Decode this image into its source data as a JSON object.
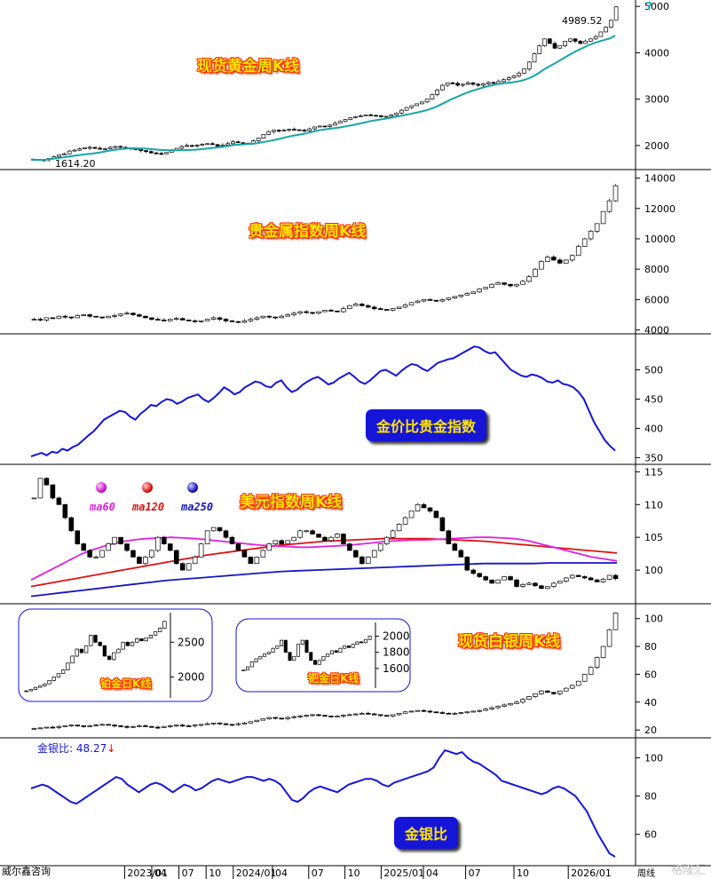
{
  "header": {
    "help_glyph": "?"
  },
  "footer": {
    "source": "威尔鑫咨询",
    "watermark": "格隆汇"
  },
  "panels": {
    "gold": {
      "title": "现货黄金周K线",
      "high_label": "4989.52",
      "low_label": "1614.20"
    },
    "pm_index": {
      "title": "贵金属指数周K线"
    },
    "ratio_pm": {
      "title": "金价比贵金指数"
    },
    "usd": {
      "title": "美元指数周K线",
      "ma60": "ma60",
      "ma120": "ma120",
      "ma250": "ma250"
    },
    "silver": {
      "title": "现货白银周K线",
      "inset_pt": "铂金日K线",
      "inset_pd": "钯金日K线"
    },
    "gs_ratio": {
      "title": "金银比",
      "value_label": "金银比: 48.27",
      "arrow": "↓"
    }
  },
  "x_axis": {
    "ticks": [
      {
        "label": "2023/01",
        "frac": 0.155
      },
      {
        "label": "04",
        "frac": 0.2
      },
      {
        "label": "07",
        "frac": 0.245
      },
      {
        "label": "10",
        "frac": 0.29
      },
      {
        "label": "2024/01",
        "frac": 0.335
      },
      {
        "label": "04",
        "frac": 0.4
      },
      {
        "label": "07",
        "frac": 0.46
      },
      {
        "label": "10",
        "frac": 0.52
      },
      {
        "label": "2025/01",
        "frac": 0.58
      },
      {
        "label": "04",
        "frac": 0.65
      },
      {
        "label": "07",
        "frac": 0.72
      },
      {
        "label": "10",
        "frac": 0.8
      },
      {
        "label": "2026/01",
        "frac": 0.89
      }
    ],
    "unit_label": "周线"
  },
  "chart_data": [
    {
      "type": "candlestick",
      "title": "现货黄金周K线",
      "ylim": [
        1500,
        5100
      ],
      "y_ticks": [
        2000,
        3000,
        4000,
        5000
      ],
      "annotations": [
        "4989.52",
        "1614.20"
      ],
      "close_series": [
        1700,
        1680,
        1690,
        1720,
        1760,
        1800,
        1820,
        1880,
        1900,
        1930,
        1950,
        1960,
        1940,
        1920,
        1930,
        1960,
        1980,
        1960,
        1950,
        1930,
        1910,
        1890,
        1870,
        1840,
        1830,
        1820,
        1850,
        1900,
        1940,
        1980,
        2000,
        1990,
        2010,
        2030,
        2040,
        2020,
        1990,
        2010,
        2040,
        2080,
        2060,
        2040,
        2050,
        2100,
        2160,
        2240,
        2300,
        2330,
        2320,
        2330,
        2350,
        2340,
        2330,
        2320,
        2360,
        2400,
        2420,
        2410,
        2440,
        2480,
        2520,
        2560,
        2600,
        2620,
        2640,
        2660,
        2650,
        2640,
        2620,
        2630,
        2660,
        2700,
        2760,
        2820,
        2860,
        2900,
        2940,
        3000,
        3100,
        3200,
        3300,
        3350,
        3340,
        3300,
        3320,
        3350,
        3320,
        3300,
        3330,
        3360,
        3340,
        3380,
        3420,
        3460,
        3500,
        3560,
        3650,
        3800,
        3980,
        4150,
        4300,
        4200,
        4100,
        4150,
        4250,
        4300,
        4250,
        4200,
        4250,
        4300,
        4350,
        4450,
        4550,
        4700,
        4989.52
      ],
      "ma_color": "#17a5a5"
    },
    {
      "type": "candlestick",
      "title": "贵金属指数周K线",
      "ylim": [
        3800,
        14500
      ],
      "y_ticks": [
        4000,
        6000,
        8000,
        10000,
        12000,
        14000
      ],
      "close_series": [
        4700,
        4650,
        4800,
        4750,
        4900,
        4850,
        4800,
        4950,
        5000,
        4900,
        4850,
        4800,
        4900,
        4950,
        5050,
        5100,
        5000,
        4900,
        4800,
        4700,
        4650,
        4600,
        4700,
        4750,
        4650,
        4600,
        4550,
        4600,
        4700,
        4800,
        4700,
        4600,
        4550,
        4500,
        4600,
        4700,
        4800,
        4900,
        4850,
        4800,
        4900,
        5000,
        5100,
        5200,
        5150,
        5100,
        5200,
        5300,
        5250,
        5200,
        5400,
        5600,
        5700,
        5600,
        5500,
        5400,
        5350,
        5300,
        5400,
        5500,
        5650,
        5800,
        5900,
        6000,
        5950,
        5900,
        6000,
        6100,
        6200,
        6300,
        6400,
        6500,
        6700,
        6800,
        7000,
        7100,
        7000,
        6900,
        7000,
        7200,
        7500,
        8000,
        8500,
        8800,
        8600,
        8400,
        8600,
        8900,
        9500,
        10000,
        10500,
        11000,
        11800,
        12500,
        13500
      ]
    },
    {
      "type": "line",
      "title": "金价比贵金指数",
      "ylim": [
        340,
        560
      ],
      "y_ticks": [
        350,
        400,
        450,
        500
      ],
      "color": "#1515d8",
      "values": [
        352,
        355,
        358,
        354,
        360,
        358,
        365,
        362,
        368,
        372,
        380,
        388,
        395,
        405,
        415,
        420,
        425,
        430,
        428,
        420,
        415,
        425,
        432,
        440,
        438,
        445,
        450,
        448,
        442,
        446,
        452,
        455,
        458,
        450,
        445,
        452,
        460,
        470,
        465,
        458,
        462,
        470,
        475,
        480,
        478,
        472,
        470,
        478,
        482,
        470,
        462,
        466,
        474,
        480,
        485,
        488,
        482,
        475,
        478,
        485,
        490,
        495,
        488,
        480,
        476,
        482,
        490,
        498,
        500,
        495,
        490,
        498,
        505,
        510,
        508,
        502,
        498,
        505,
        512,
        515,
        518,
        520,
        525,
        530,
        535,
        540,
        538,
        532,
        528,
        530,
        520,
        510,
        500,
        495,
        490,
        488,
        492,
        490,
        486,
        480,
        478,
        482,
        476,
        474,
        470,
        462,
        450,
        430,
        410,
        395,
        380,
        370,
        362
      ]
    },
    {
      "type": "candlestick",
      "title": "美元指数周K线",
      "ylim": [
        95,
        116
      ],
      "y_ticks": [
        100,
        105,
        110,
        115
      ],
      "series": [
        {
          "name": "ma60",
          "color": "#e020e0",
          "values": [
            98.5,
            99.5,
            100.5,
            101.5,
            102.5,
            103.2,
            103.8,
            104.3,
            104.6,
            104.8,
            104.9,
            105.0,
            104.9,
            104.8,
            104.6,
            104.4,
            104.2,
            104.0,
            103.8,
            103.7,
            103.6,
            103.5,
            103.5,
            103.6,
            103.7,
            103.8,
            104.0,
            104.2,
            104.4,
            104.5,
            104.6,
            104.6,
            104.7,
            104.8,
            104.9,
            105.0,
            105.0,
            104.9,
            104.8,
            104.5,
            104.0,
            103.5,
            103.0,
            102.5,
            102.0,
            101.7,
            101.4
          ]
        },
        {
          "name": "ma120",
          "color": "#e01010",
          "values": [
            97.5,
            97.9,
            98.3,
            98.7,
            99.1,
            99.5,
            99.9,
            100.3,
            100.7,
            101.1,
            101.5,
            101.9,
            102.3,
            102.6,
            102.9,
            103.2,
            103.5,
            103.8,
            104.0,
            104.2,
            104.4,
            104.5,
            104.6,
            104.7,
            104.8,
            104.8,
            104.8,
            104.8,
            104.7,
            104.6,
            104.5,
            104.4,
            104.2,
            104.0,
            103.8,
            103.6,
            103.4,
            103.2,
            103.0,
            102.8,
            102.6
          ]
        },
        {
          "name": "ma250",
          "color": "#1515c0",
          "values": [
            96.0,
            96.3,
            96.6,
            96.9,
            97.2,
            97.5,
            97.8,
            98.1,
            98.4,
            98.6,
            98.8,
            99.0,
            99.2,
            99.4,
            99.6,
            99.8,
            99.9,
            100.0,
            100.1,
            100.2,
            100.3,
            100.4,
            100.5,
            100.6,
            100.7,
            100.8,
            100.9,
            101.0,
            101.0,
            101.0,
            101.0,
            101.1,
            101.1,
            101.1,
            101.1,
            101.1
          ]
        }
      ],
      "close_series": [
        111,
        114,
        113,
        111,
        110,
        108,
        106,
        104,
        103,
        102,
        102,
        103,
        104,
        105,
        104,
        103,
        102,
        101,
        102,
        103,
        105,
        104,
        103,
        101,
        100,
        101,
        102,
        104,
        106,
        106.5,
        106,
        105,
        104,
        103,
        102,
        101,
        102,
        103,
        104,
        104.5,
        104,
        104.5,
        105,
        106,
        106,
        105.5,
        105,
        104.5,
        105,
        105.5,
        104,
        103,
        102,
        101,
        102,
        103,
        104,
        105,
        106,
        107,
        108,
        109,
        110,
        109.5,
        109,
        108,
        106,
        104,
        103,
        102,
        100,
        99.5,
        99,
        98.5,
        98,
        98.5,
        99,
        98.5,
        97.5,
        97.8,
        98,
        97.6,
        97.2,
        97.5,
        98,
        98.3,
        98.8,
        99.2,
        99,
        98.8,
        98.5,
        98.2,
        98.6,
        99.2,
        98.7
      ]
    },
    {
      "type": "candlestick",
      "title": "现货白银周K线",
      "ylim": [
        15,
        110
      ],
      "y_ticks": [
        20,
        40,
        60,
        80,
        100
      ],
      "close_series": [
        21,
        21.5,
        22,
        21.8,
        22.5,
        23,
        23.5,
        23,
        22.5,
        23,
        23.5,
        24,
        23.5,
        23,
        22.5,
        22,
        22.5,
        23,
        22.5,
        22,
        21.8,
        22.5,
        23,
        23.5,
        23,
        22.8,
        23.5,
        24,
        24.5,
        25,
        24.5,
        24,
        23.8,
        24.5,
        25,
        26,
        27,
        28,
        29,
        28.5,
        28,
        29,
        29.5,
        30,
        30.5,
        31,
        30.5,
        30,
        29.5,
        30,
        30.5,
        31,
        31.5,
        32,
        31.5,
        31,
        30.5,
        30,
        31,
        32,
        33,
        33.5,
        34,
        33.5,
        33,
        32.5,
        32,
        31.5,
        32,
        32.5,
        33,
        33.5,
        34,
        35,
        36,
        37,
        38,
        39,
        40,
        42,
        44,
        46,
        48,
        47,
        46,
        48,
        50,
        52,
        55,
        60,
        65,
        72,
        80,
        92,
        104
      ]
    },
    {
      "type": "line",
      "title": "金银比",
      "ylim": [
        45,
        110
      ],
      "y_ticks": [
        60,
        80,
        100
      ],
      "color": "#1515d8",
      "values": [
        84,
        85,
        86,
        85,
        83,
        81,
        79,
        77,
        76,
        78,
        80,
        82,
        84,
        86,
        88,
        90,
        89,
        86,
        84,
        82,
        84,
        86,
        87,
        86,
        84,
        82,
        84,
        86,
        85,
        83,
        84,
        86,
        88,
        89,
        88,
        87,
        88,
        89,
        90,
        90,
        89,
        88,
        89,
        88,
        86,
        82,
        78,
        77,
        79,
        82,
        84,
        85,
        84,
        83,
        82,
        84,
        86,
        87,
        88,
        89,
        89,
        88,
        86,
        85,
        87,
        88,
        89,
        90,
        91,
        92,
        93,
        95,
        100,
        104,
        103,
        102,
        103,
        100,
        98,
        97,
        95,
        93,
        91,
        88,
        87,
        86,
        85,
        84,
        83,
        82,
        81,
        82,
        84,
        85,
        84,
        82,
        80,
        76,
        72,
        66,
        60,
        55,
        50,
        48.27
      ]
    },
    {
      "type": "candlestick",
      "title": "铂金日K线",
      "ylim": [
        1750,
        2900
      ],
      "y_ticks": [
        2000,
        2500
      ],
      "close_series": [
        1800,
        1820,
        1850,
        1870,
        1900,
        1950,
        2000,
        2050,
        2100,
        2200,
        2300,
        2400,
        2350,
        2450,
        2600,
        2500,
        2450,
        2300,
        2250,
        2350,
        2400,
        2500,
        2450,
        2500,
        2550,
        2520,
        2560,
        2600,
        2650,
        2700,
        2800
      ]
    },
    {
      "type": "candlestick",
      "title": "钯金日K线",
      "ylim": [
        1400,
        2150
      ],
      "y_ticks": [
        1600,
        1800,
        2000
      ],
      "close_series": [
        1580,
        1620,
        1680,
        1720,
        1750,
        1780,
        1800,
        1850,
        1880,
        1950,
        1800,
        1700,
        1750,
        1900,
        1950,
        1800,
        1700,
        1650,
        1700,
        1750,
        1780,
        1820,
        1800,
        1850,
        1880,
        1860,
        1900,
        1930,
        1920,
        1960,
        2000
      ]
    }
  ]
}
